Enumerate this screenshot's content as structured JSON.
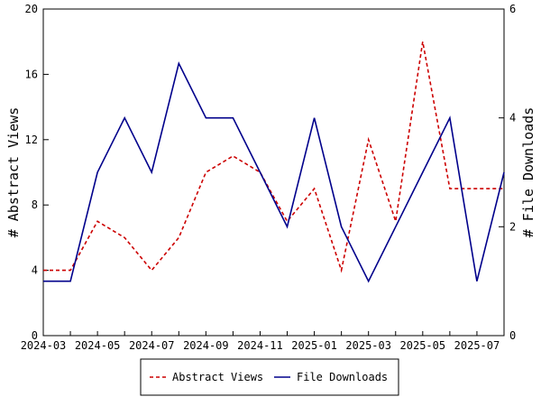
{
  "chart_data": {
    "type": "line",
    "title": "",
    "x": [
      "2024-03",
      "2024-04",
      "2024-05",
      "2024-06",
      "2024-07",
      "2024-08",
      "2024-09",
      "2024-10",
      "2024-11",
      "2024-12",
      "2025-01",
      "2025-02",
      "2025-03",
      "2025-04",
      "2025-05",
      "2025-06",
      "2025-07",
      "2025-08"
    ],
    "x_tick_labels": [
      "2024-03",
      "2024-05",
      "2024-07",
      "2024-09",
      "2024-11",
      "2025-01",
      "2025-03",
      "2025-05",
      "2025-07"
    ],
    "series": [
      {
        "name": "Abstract Views",
        "axis": "left",
        "color": "#cc0000",
        "style": "dashed",
        "values": [
          4,
          4,
          7,
          6,
          4,
          6,
          10,
          11,
          10,
          7,
          9,
          4,
          12,
          7,
          18,
          9,
          9,
          9
        ]
      },
      {
        "name": "File Downloads",
        "axis": "right",
        "color": "#00008b",
        "style": "solid",
        "values": [
          1,
          1,
          3,
          4,
          3,
          5,
          4,
          4,
          3,
          2,
          4,
          2,
          1,
          2,
          3,
          4,
          1,
          3
        ]
      }
    ],
    "ylabel": "# Abstract Views",
    "ylim": [
      0,
      20
    ],
    "y_ticks": [
      0,
      4,
      8,
      12,
      16,
      20
    ],
    "y2label": "# File Downloads",
    "y2lim": [
      0,
      6
    ],
    "y2_ticks": [
      0,
      2,
      4,
      6
    ],
    "grid": false,
    "legend_position": "bottom"
  }
}
